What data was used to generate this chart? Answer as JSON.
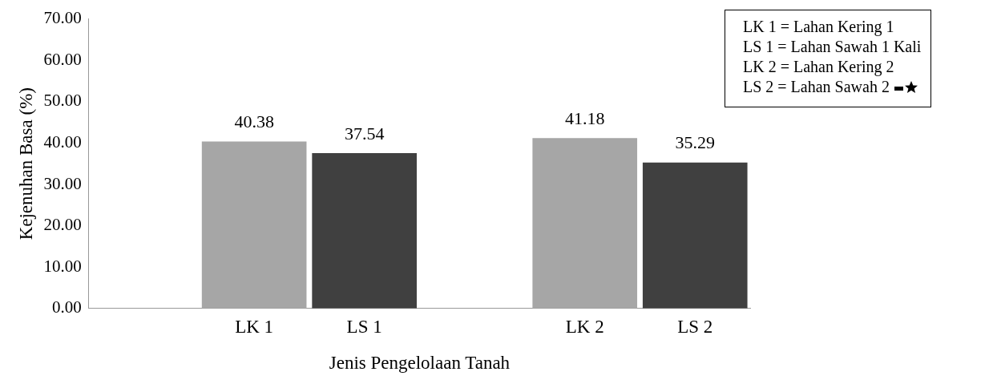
{
  "chart_data": {
    "type": "bar",
    "xlabel": "Jenis Pengelolaan Tanah",
    "ylabel": "Kejenuhan Basa (%)",
    "categories": [
      null,
      "LK 1",
      "LS 1",
      null,
      "LK 2",
      "LS 2"
    ],
    "values": [
      null,
      40.38,
      37.54,
      null,
      41.18,
      35.29
    ],
    "colors": [
      "#a6a6a6",
      "#a6a6a6",
      "#404040",
      "#a6a6a6",
      "#a6a6a6",
      "#404040"
    ],
    "ylim": [
      0,
      70
    ],
    "yticks": [
      {
        "value": 0,
        "label": "0.00"
      },
      {
        "value": 10,
        "label": "10.00"
      },
      {
        "value": 20,
        "label": "20.00"
      },
      {
        "value": 30,
        "label": "30.00"
      },
      {
        "value": 40,
        "label": "40.00"
      },
      {
        "value": 50,
        "label": "50.00"
      },
      {
        "value": 60,
        "label": "60.00"
      },
      {
        "value": 70,
        "label": "70.00"
      }
    ],
    "grid": false,
    "legend": false,
    "data_labels": true,
    "annotations": [
      "LK 1 = Lahan Kering 1",
      "LS 1 = Lahan Sawah 1 Kali",
      "LK 2 = Lahan Kering 2",
      "LS 2 = Lahan Sawah 2"
    ]
  }
}
